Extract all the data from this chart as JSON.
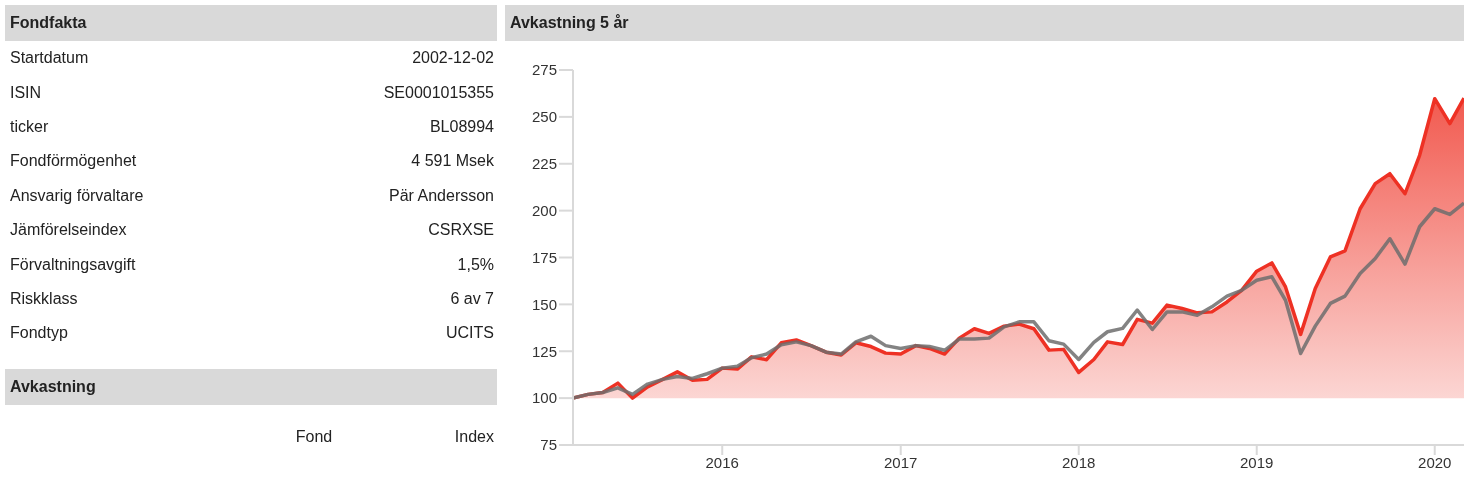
{
  "chart_data": [
    {
      "type": "other",
      "title": "Fondfakta",
      "annotations": [
        "Startdatum",
        "2002-12-02",
        "ISIN",
        "SE0001015355",
        "ticker",
        "BL08994",
        "Fondförmögenhet",
        "4 591 Msek",
        "Ansvarig förvaltare",
        "Pär Andersson",
        "Jämförelseindex",
        "CSRXSE",
        "Förvaltningsavgift",
        "1,5%",
        "Riskklass",
        "6 av 7",
        "Fondtyp",
        "UCITS"
      ]
    },
    {
      "type": "other",
      "title": "Avkastning",
      "annotations": [
        "Fond",
        "Index"
      ]
    },
    {
      "type": "line",
      "title": "Avkastning 5 år",
      "x": [
        "2015-03",
        "2015-04",
        "2015-05",
        "2015-06",
        "2015-07",
        "2015-08",
        "2015-09",
        "2015-10",
        "2015-11",
        "2015-12",
        "2016-01",
        "2016-02",
        "2016-03",
        "2016-04",
        "2016-05",
        "2016-06",
        "2016-07",
        "2016-08",
        "2016-09",
        "2016-10",
        "2016-11",
        "2016-12",
        "2017-01",
        "2017-02",
        "2017-03",
        "2017-04",
        "2017-05",
        "2017-06",
        "2017-07",
        "2017-08",
        "2017-09",
        "2017-10",
        "2017-11",
        "2017-12",
        "2018-01",
        "2018-02",
        "2018-03",
        "2018-04",
        "2018-05",
        "2018-06",
        "2018-07",
        "2018-08",
        "2018-09",
        "2018-10",
        "2018-11",
        "2018-12",
        "2019-01",
        "2019-02",
        "2019-03",
        "2019-04",
        "2019-05",
        "2019-06",
        "2019-07",
        "2019-08",
        "2019-09",
        "2019-10",
        "2019-11",
        "2019-12",
        "2020-01",
        "2020-02",
        "2020-03"
      ],
      "series": [
        {
          "type": "area",
          "color": "#ee3124",
          "values": [
            100,
            102,
            103,
            108,
            100,
            106,
            110,
            114,
            109.5,
            110,
            116,
            115.5,
            122,
            120.5,
            129.5,
            131,
            128,
            124.5,
            123,
            129.5,
            127.5,
            124,
            123.5,
            128,
            126.5,
            123.5,
            132,
            137,
            134.5,
            138.4,
            139.5,
            137,
            125.6,
            126,
            113.7,
            120.6,
            130,
            128.6,
            142,
            140,
            149.6,
            147.8,
            145.5,
            146,
            151.3,
            157.5,
            167.7,
            172.1,
            159.3,
            134,
            158.5,
            175.3,
            178.5,
            201,
            214.4,
            219.7,
            209,
            229.5,
            259.7,
            246.4,
            260
          ]
        },
        {
          "type": "line",
          "color": "#6d6d6d",
          "values": [
            100,
            102,
            103,
            105.5,
            102,
            107.5,
            110,
            111.5,
            110.5,
            113,
            116,
            117,
            121.5,
            123.5,
            128.5,
            130,
            128,
            124.5,
            123.5,
            130,
            133,
            128,
            126.5,
            128,
            127.5,
            125.5,
            131.5,
            131.5,
            132,
            138,
            140.7,
            140.7,
            130.6,
            128.8,
            120.6,
            129.7,
            135.4,
            137.2,
            147,
            136.6,
            146,
            146,
            144.2,
            148.7,
            154.4,
            157.5,
            162.9,
            164.7,
            152.2,
            123.8,
            138.4,
            150.5,
            154.4,
            166.5,
            174.5,
            185,
            171.5,
            191.4,
            201,
            198,
            204
          ]
        }
      ],
      "xlim": [
        "2015-03",
        "2020-03"
      ],
      "xticks": [
        {
          "value": "2016-01",
          "label": "2016"
        },
        {
          "value": "2017-01",
          "label": "2017"
        },
        {
          "value": "2018-01",
          "label": "2018"
        },
        {
          "value": "2019-01",
          "label": "2019"
        },
        {
          "value": "2020-01",
          "label": "2020"
        }
      ],
      "ylim": [
        75,
        275
      ],
      "yticks": [
        75,
        100,
        125,
        150,
        175,
        200,
        225,
        250,
        275
      ],
      "grid": false,
      "legend": false
    }
  ]
}
